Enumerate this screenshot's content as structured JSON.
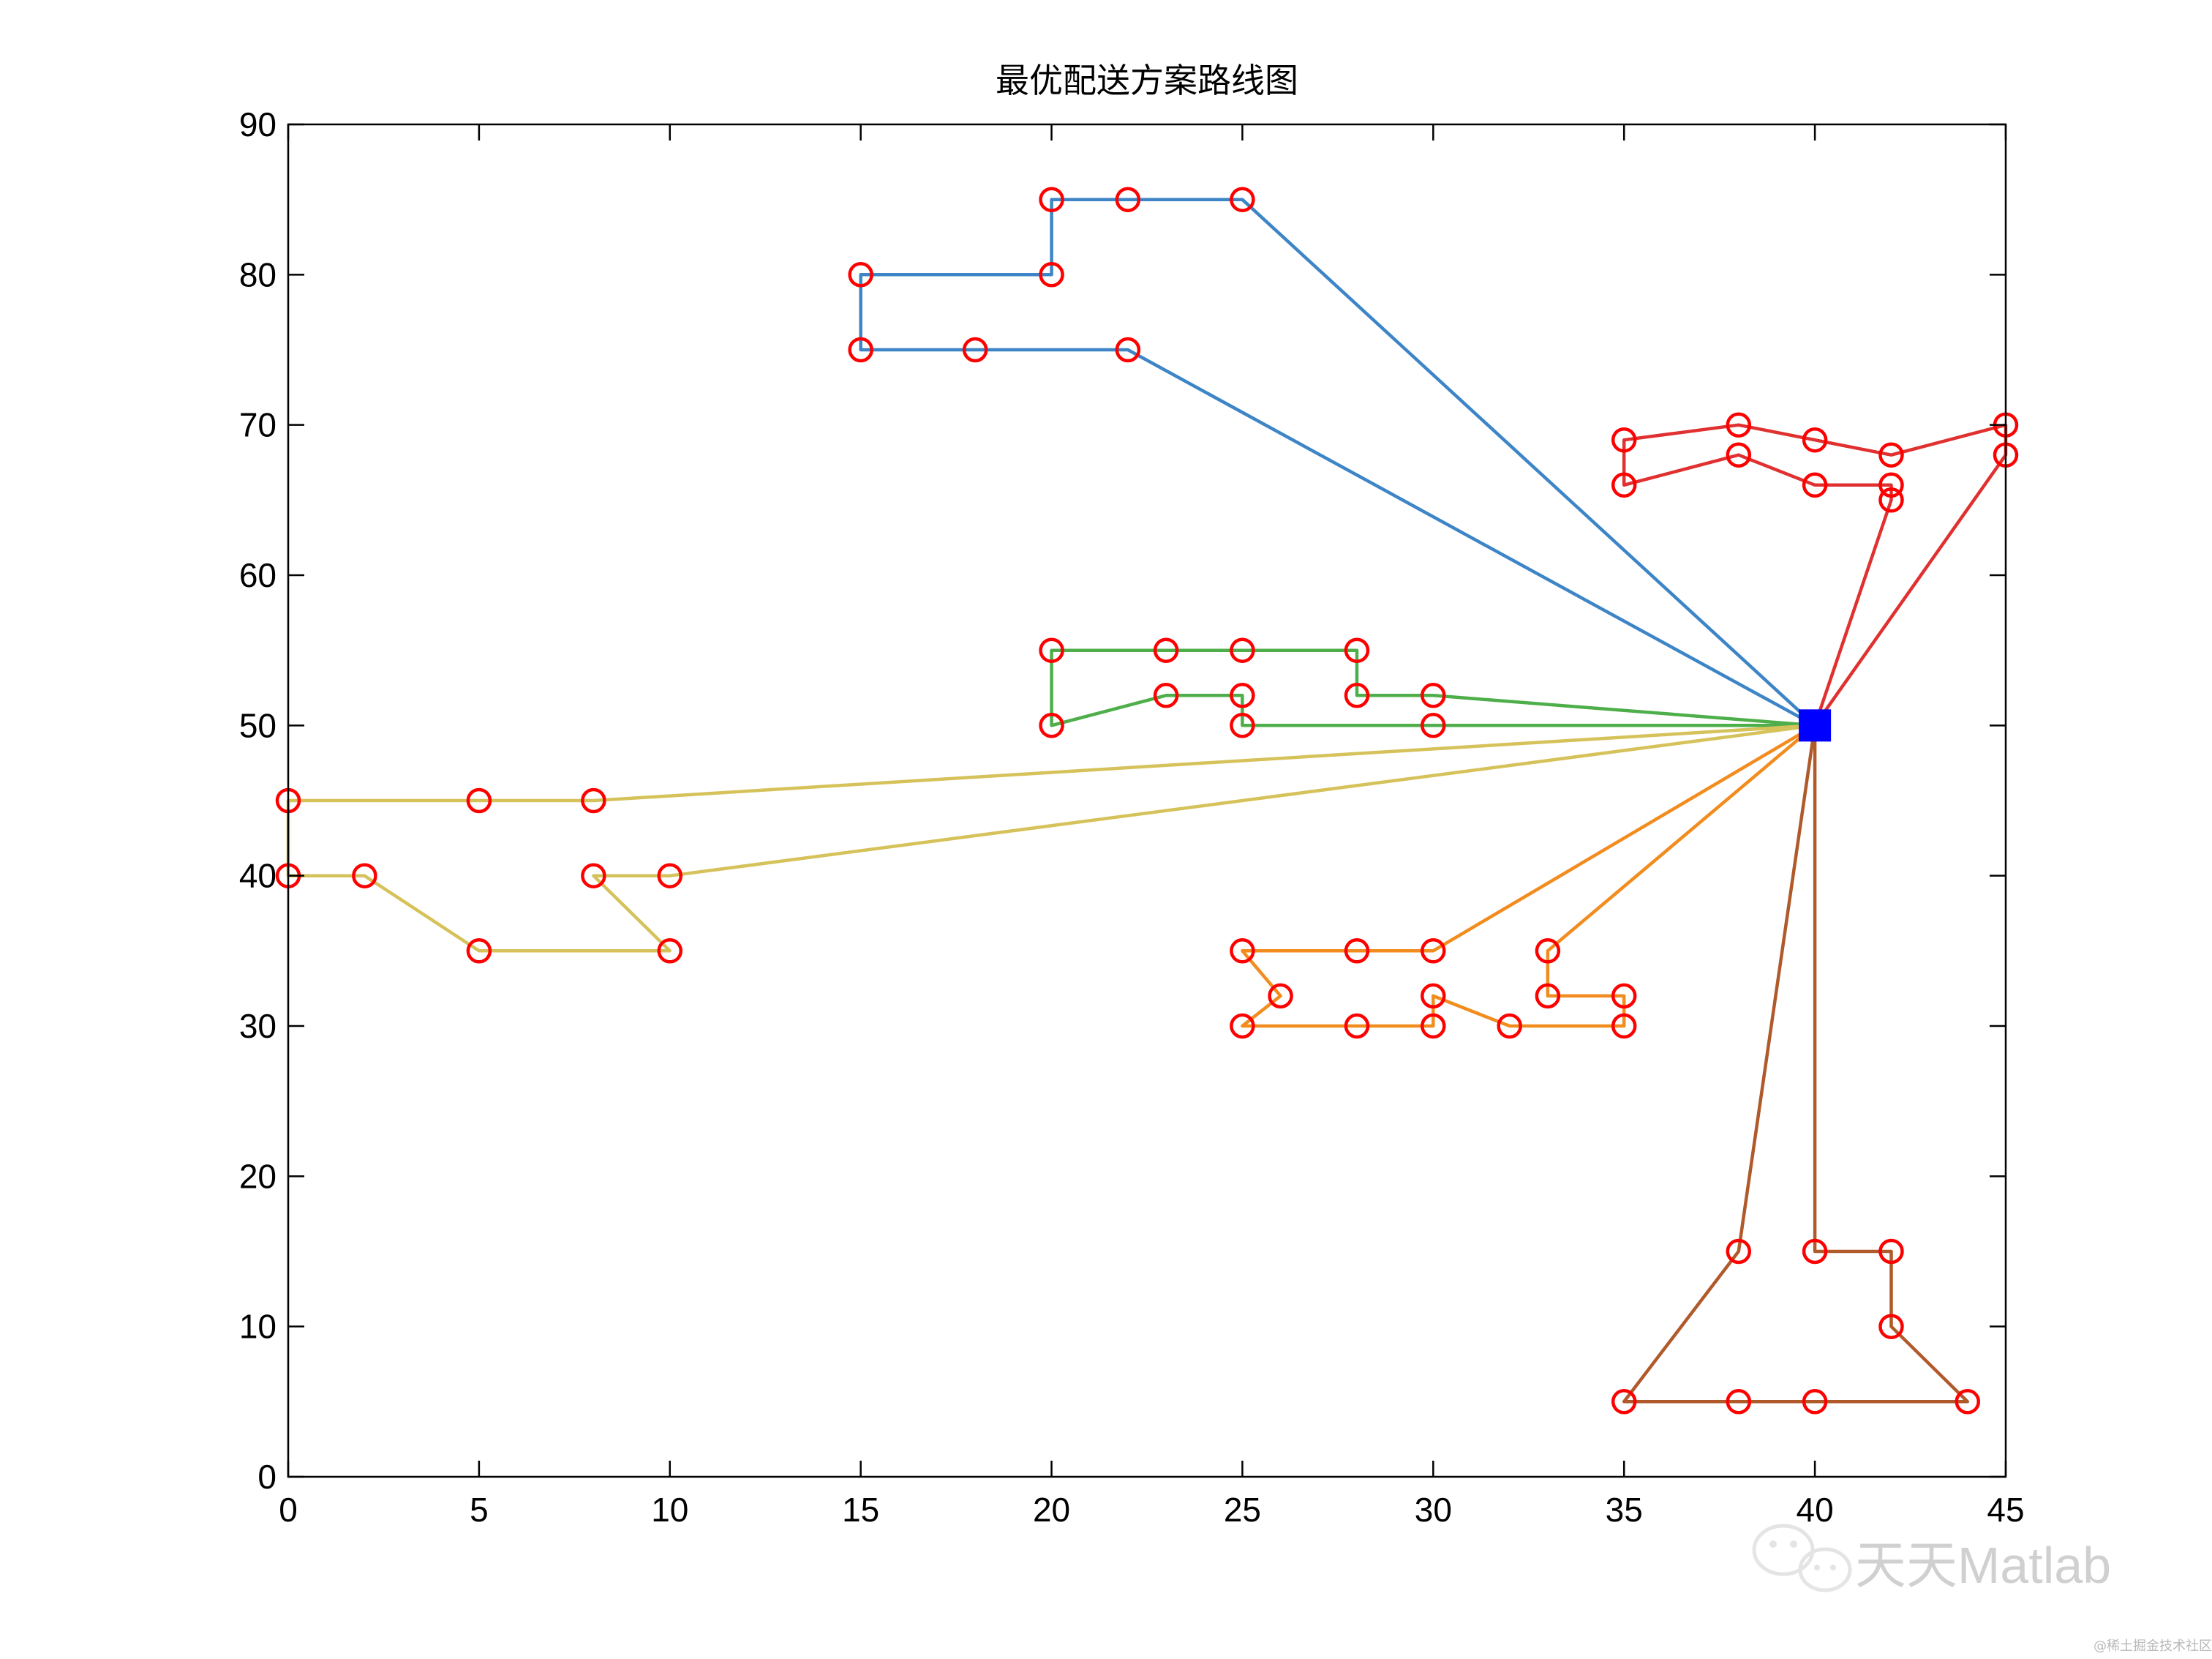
{
  "chart_data": {
    "type": "line",
    "title": "最优配送方案路线图",
    "xlabel": "",
    "ylabel": "",
    "xlim": [
      0,
      45
    ],
    "ylim": [
      0,
      90
    ],
    "xticks": [
      0,
      5,
      10,
      15,
      20,
      25,
      30,
      35,
      40,
      45
    ],
    "yticks": [
      0,
      10,
      20,
      30,
      40,
      50,
      60,
      70,
      80,
      90
    ],
    "grid": false,
    "depot": {
      "x": 40,
      "y": 50,
      "color": "#0000ff",
      "marker": "square"
    },
    "marker_color": "#ff0000",
    "series": [
      {
        "color": "#3d85c6",
        "points": [
          [
            40,
            50
          ],
          [
            25,
            85
          ],
          [
            22,
            85
          ],
          [
            20,
            85
          ],
          [
            20,
            80
          ],
          [
            15,
            80
          ],
          [
            15,
            75
          ],
          [
            18,
            75
          ],
          [
            22,
            75
          ],
          [
            40,
            50
          ]
        ]
      },
      {
        "color": "#e03030",
        "points": [
          [
            40,
            50
          ],
          [
            45,
            68
          ],
          [
            45,
            70
          ],
          [
            42,
            68
          ],
          [
            40,
            69
          ],
          [
            38,
            70
          ],
          [
            35,
            69
          ],
          [
            35,
            66
          ],
          [
            38,
            68
          ],
          [
            40,
            66
          ],
          [
            42,
            66
          ],
          [
            42,
            65
          ],
          [
            40,
            50
          ]
        ]
      },
      {
        "color": "#4eaf4a",
        "points": [
          [
            40,
            50
          ],
          [
            30,
            52
          ],
          [
            28,
            52
          ],
          [
            28,
            55
          ],
          [
            25,
            55
          ],
          [
            23,
            55
          ],
          [
            20,
            55
          ],
          [
            20,
            50
          ],
          [
            23,
            52
          ],
          [
            25,
            52
          ],
          [
            25,
            50
          ],
          [
            30,
            50
          ],
          [
            40,
            50
          ]
        ]
      },
      {
        "color": "#d6c25a",
        "points": [
          [
            40,
            50
          ],
          [
            8,
            45
          ],
          [
            5,
            45
          ],
          [
            0,
            45
          ],
          [
            0,
            40
          ],
          [
            2,
            40
          ],
          [
            5,
            35
          ],
          [
            10,
            35
          ],
          [
            8,
            40
          ],
          [
            10,
            40
          ],
          [
            40,
            50
          ]
        ]
      },
      {
        "color": "#f28c1e",
        "points": [
          [
            40,
            50
          ],
          [
            30,
            35
          ],
          [
            28,
            35
          ],
          [
            25,
            35
          ],
          [
            26,
            32
          ],
          [
            25,
            30
          ],
          [
            28,
            30
          ],
          [
            30,
            30
          ],
          [
            30,
            32
          ],
          [
            32,
            30
          ],
          [
            35,
            30
          ],
          [
            35,
            32
          ],
          [
            33,
            32
          ],
          [
            33,
            35
          ],
          [
            40,
            50
          ]
        ]
      },
      {
        "color": "#b05a2b",
        "points": [
          [
            40,
            50
          ],
          [
            40,
            15
          ],
          [
            42,
            15
          ],
          [
            42,
            10
          ],
          [
            44,
            5
          ],
          [
            40,
            5
          ],
          [
            38,
            5
          ],
          [
            35,
            5
          ],
          [
            38,
            15
          ],
          [
            40,
            50
          ]
        ]
      }
    ]
  },
  "watermark": {
    "text": "天天Matlab",
    "small_text": "@稀土掘金技术社区",
    "icon": "wechat-icon"
  }
}
